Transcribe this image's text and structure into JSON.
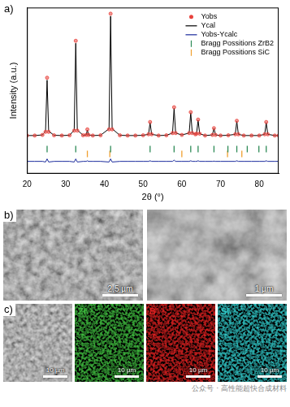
{
  "chart_data": {
    "type": "line",
    "x_label": "2θ (°)",
    "y_label": "Intensity (a.u.)",
    "x": [
      20,
      22,
      24,
      24.8,
      25.2,
      25.6,
      27,
      29,
      31,
      32.2,
      32.6,
      33,
      34.5,
      35.3,
      35.6,
      35.9,
      37,
      39,
      41.2,
      41.6,
      42,
      44,
      46,
      48,
      50,
      51.4,
      51.8,
      52.2,
      54,
      56,
      57.6,
      58,
      58.4,
      60,
      61.9,
      62.3,
      62.7,
      63.5,
      63.8,
      64.2,
      64.6,
      66,
      67.9,
      68.3,
      68.7,
      70,
      72,
      73.8,
      74.2,
      74.6,
      76,
      78,
      80,
      81.4,
      81.8,
      82.2,
      84,
      85
    ],
    "series": [
      {
        "name": "Yobs",
        "color": "#e8423c",
        "marker": "circle",
        "line_style": "none",
        "values": [
          1,
          1,
          1.5,
          4,
          48,
          4,
          1.2,
          1,
          1.2,
          5,
          78,
          5,
          1.2,
          1.5,
          6,
          1.5,
          1,
          1.2,
          6,
          100,
          6,
          1.2,
          1,
          1,
          1.2,
          2,
          12,
          2,
          1,
          1.2,
          3,
          24,
          3,
          1.5,
          3,
          20,
          3,
          2,
          2.5,
          14,
          2.5,
          1,
          1.5,
          7,
          1.5,
          1,
          1.2,
          2,
          13,
          2,
          1,
          1,
          1,
          2,
          12,
          2,
          1,
          1
        ]
      },
      {
        "name": "Ycal",
        "color": "#000000",
        "marker": "none",
        "line_style": "solid",
        "values": [
          1,
          1,
          1.5,
          4.5,
          46,
          4.5,
          1.2,
          1,
          1.2,
          5.5,
          76,
          5.5,
          1.2,
          1.5,
          5.5,
          1.5,
          1,
          1.2,
          6.5,
          98,
          6.5,
          1.2,
          1,
          1,
          1.2,
          2,
          11.5,
          2,
          1,
          1.2,
          3,
          23,
          3,
          1.5,
          3,
          19.5,
          3,
          2,
          2.5,
          13.5,
          2.5,
          1,
          1.5,
          6.8,
          1.5,
          1,
          1.2,
          2,
          12.5,
          2,
          1,
          1,
          1,
          2,
          11.5,
          2,
          1,
          1
        ]
      },
      {
        "name": "Yobs-Ycalc",
        "color": "#1a2a9c",
        "marker": "none",
        "line_style": "solid",
        "values": [
          -20,
          -20,
          -20,
          -20.5,
          -18,
          -20.5,
          -20,
          -20,
          -20,
          -20.5,
          -18,
          -20.5,
          -20,
          -20,
          -19.5,
          -20,
          -20,
          -20,
          -20.5,
          -18,
          -20.5,
          -20,
          -20,
          -20,
          -20,
          -20,
          -19.5,
          -20,
          -20,
          -20,
          -20,
          -19,
          -20,
          -20,
          -20,
          -19.5,
          -20,
          -20,
          -20,
          -19.5,
          -20,
          -20,
          -20,
          -19.8,
          -20,
          -20,
          -20,
          -20,
          -19.5,
          -20,
          -20,
          -20,
          -20,
          -20,
          -19.5,
          -20,
          -20,
          -20
        ]
      },
      {
        "name": "Bragg Possitions ZrB2",
        "color": "#2e8b57",
        "marker": "vline",
        "line_style": "none",
        "x": [
          25.2,
          32.6,
          41.6,
          51.8,
          58,
          62.3,
          64.2,
          68.3,
          71.9,
          74.2,
          76.9,
          79.9,
          81.8
        ],
        "values": [
          -10,
          -10,
          -10,
          -10,
          -10,
          -10,
          -10,
          -10,
          -10,
          -10,
          -10,
          -10,
          -10
        ]
      },
      {
        "name": "Bragg Possitions SiC",
        "color": "#f0a030",
        "marker": "vline",
        "line_style": "none",
        "x": [
          35.6,
          41.4,
          60,
          71.8,
          75.5
        ],
        "values": [
          -14,
          -14,
          -14,
          -14,
          -14
        ]
      }
    ],
    "xlim": [
      20,
      85
    ],
    "xticks": [
      20,
      30,
      40,
      50,
      60,
      70,
      80
    ],
    "ylim": [
      -30,
      105
    ],
    "tick_labels": "x",
    "grid": false,
    "legend": "upper right"
  },
  "figure": {
    "panel_a": {
      "label": "a)"
    },
    "panel_b": {
      "label": "b)",
      "images": [
        {
          "scale_bar": "2,5 µm"
        },
        {
          "scale_bar": "1 µm"
        }
      ]
    },
    "panel_c": {
      "label": "c)",
      "images": [
        {
          "element": null,
          "scale_bar": "10 µm"
        },
        {
          "element": "Zr",
          "color": "#3fbf3f",
          "scale_bar": "10 µm"
        },
        {
          "element": "B",
          "color": "#e02020",
          "scale_bar": "10 µm"
        },
        {
          "element": "Si",
          "color": "#30c8c8",
          "scale_bar": "10 µm"
        }
      ]
    },
    "watermark": "公众号 · 高性能超快合成材料"
  }
}
